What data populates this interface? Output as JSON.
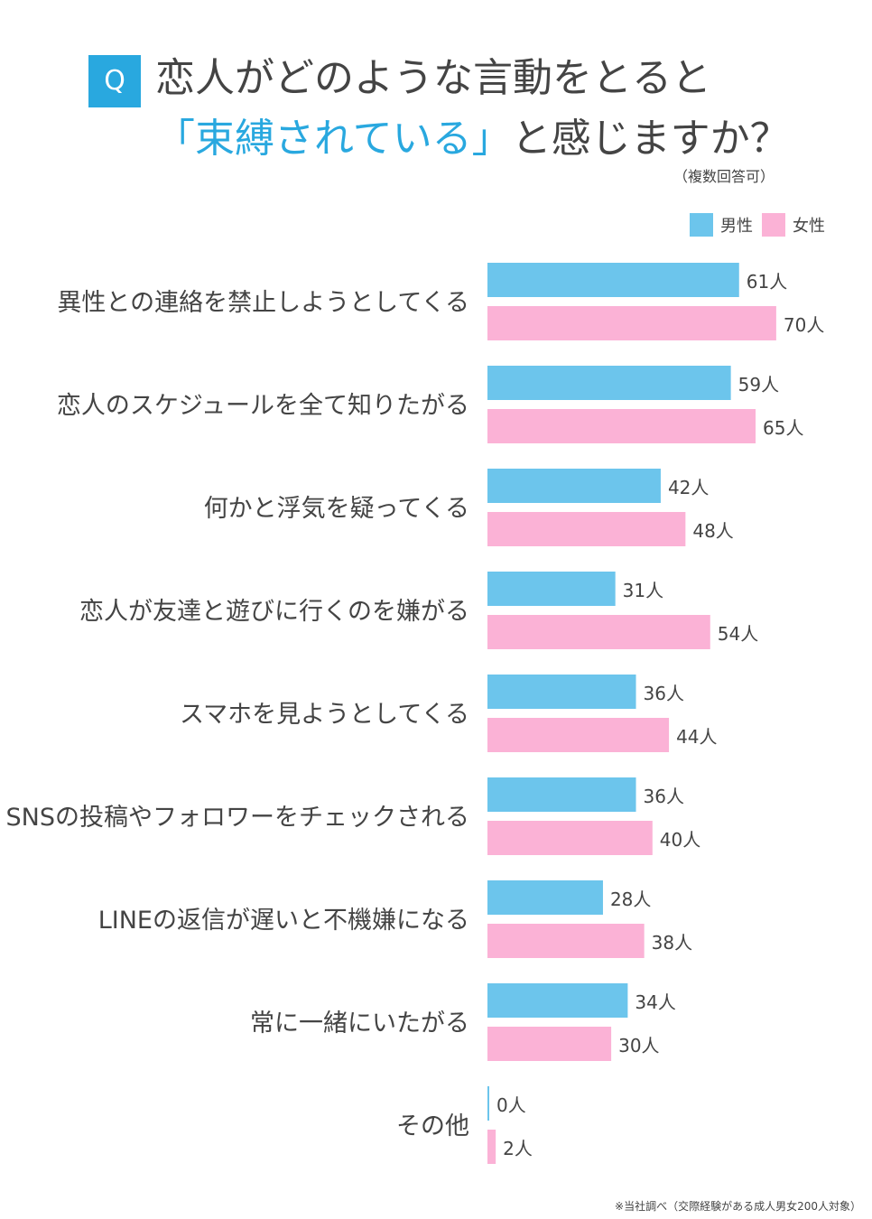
{
  "title": {
    "q_label": "Q",
    "line1": "恋人がどのような言動をとると",
    "line2_highlight": "「束縛されている」",
    "line2_rest": "と感じますか？",
    "note": "（複数回答可）"
  },
  "colors": {
    "male": "#6cc5ec",
    "female": "#fbb2d6",
    "accent": "#29a8df",
    "text": "#444444"
  },
  "footnote": "※当社調べ（交際経験がある成人男女200人対象）",
  "chart_data": {
    "type": "bar",
    "orientation": "horizontal",
    "unit": "人",
    "legend_position": "top-right",
    "categories": [
      "異性との連絡を禁止しようとしてくる",
      "恋人のスケジュールを全て知りたがる",
      "何かと浮気を疑ってくる",
      "恋人が友達と遊びに行くのを嫌がる",
      "スマホを見ようとしてくる",
      "SNSの投稿やフォロワーをチェックされる",
      "LINEの返信が遅いと不機嫌になる",
      "常に一緒にいたがる",
      "その他"
    ],
    "series": [
      {
        "name": "男性",
        "color": "#6cc5ec",
        "values": [
          61,
          59,
          42,
          31,
          36,
          36,
          28,
          34,
          0
        ]
      },
      {
        "name": "女性",
        "color": "#fbb2d6",
        "values": [
          70,
          65,
          48,
          54,
          44,
          40,
          38,
          30,
          2
        ]
      }
    ]
  }
}
